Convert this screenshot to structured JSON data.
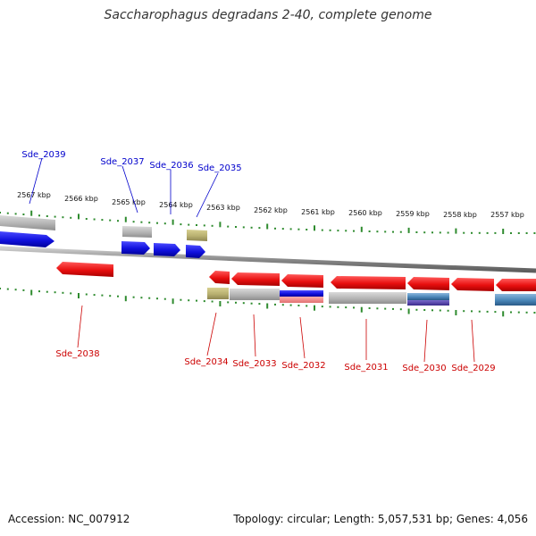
{
  "title": "Saccharophagus degradans 2-40, complete genome",
  "footer": {
    "accession": "Accession: NC_007912",
    "summary": "Topology: circular; Length: 5,057,531 bp; Genes: 4,056"
  },
  "colors": {
    "forward_label": "#0000cc",
    "reverse_label": "#cc0000",
    "tick": "#2e8b2e",
    "backbone": "#8a8a8a",
    "gene_red": "#ee1111",
    "gene_blue": "#1111dd",
    "gene_gray": "#b4b4b4",
    "gene_olive": "#b8b070",
    "gene_steel": "#4a86b8",
    "gene_indigo": "#4a3a9a"
  },
  "kbp_ticks": [
    {
      "label": "2567 kbp"
    },
    {
      "label": "2566 kbp"
    },
    {
      "label": "2565 kbp"
    },
    {
      "label": "2564 kbp"
    },
    {
      "label": "2563 kbp"
    },
    {
      "label": "2562 kbp"
    },
    {
      "label": "2561 kbp"
    },
    {
      "label": "2560 kbp"
    },
    {
      "label": "2559 kbp"
    },
    {
      "label": "2558 kbp"
    },
    {
      "label": "2557 kbp"
    }
  ],
  "forward_genes": [
    {
      "label": "Sde_2039"
    },
    {
      "label": "Sde_2037"
    },
    {
      "label": "Sde_2036"
    },
    {
      "label": "Sde_2035"
    }
  ],
  "reverse_genes": [
    {
      "label": "Sde_2038"
    },
    {
      "label": "Sde_2034"
    },
    {
      "label": "Sde_2033"
    },
    {
      "label": "Sde_2032"
    },
    {
      "label": "Sde_2031"
    },
    {
      "label": "Sde_2030"
    },
    {
      "label": "Sde_2029"
    }
  ]
}
